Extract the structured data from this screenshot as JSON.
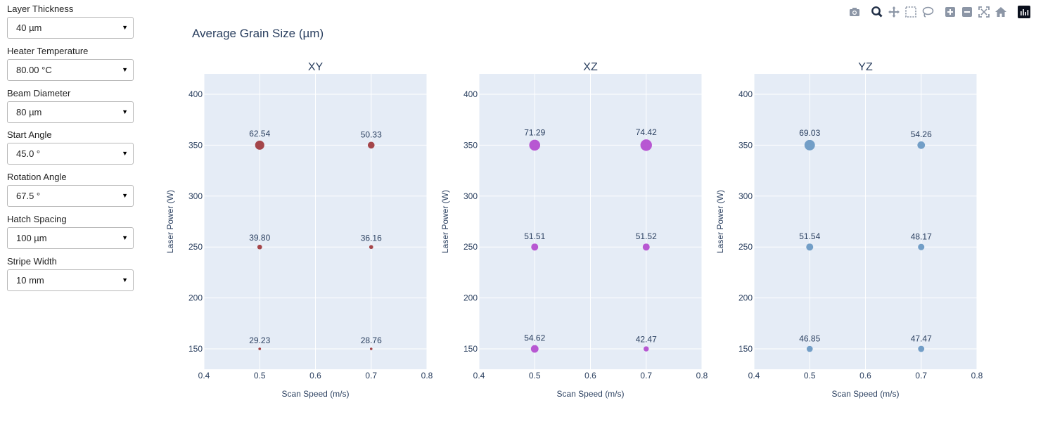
{
  "controls": [
    {
      "label": "Layer Thickness",
      "value": "40 µm"
    },
    {
      "label": "Heater Temperature",
      "value": "80.00 °C"
    },
    {
      "label": "Beam Diameter",
      "value": "80 µm"
    },
    {
      "label": "Start Angle",
      "value": "45.0 °"
    },
    {
      "label": "Rotation Angle",
      "value": "67.5 °"
    },
    {
      "label": "Hatch Spacing",
      "value": "100 µm"
    },
    {
      "label": "Stripe Width",
      "value": "10 mm"
    }
  ],
  "modebar_icons": [
    "camera-icon",
    "zoom-icon",
    "pan-icon",
    "box-select-icon",
    "lasso-select-icon",
    "zoom-in-icon",
    "zoom-out-icon",
    "autoscale-icon",
    "reset-axes-icon",
    "plotly-logo-icon"
  ],
  "figure_title": "Average Grain Size (µm)",
  "chart_data": [
    {
      "type": "scatter",
      "title": "XY",
      "color": "#a03c40",
      "xlabel": "Scan Speed (m/s)",
      "ylabel": "Laser Power (W)",
      "xlim": [
        0.4,
        0.8
      ],
      "ylim": [
        130,
        420
      ],
      "xticks": [
        0.4,
        0.5,
        0.6,
        0.7,
        0.8
      ],
      "yticks": [
        150,
        200,
        250,
        300,
        350,
        400
      ],
      "points": [
        {
          "x": 0.5,
          "y": 350,
          "value": 62.54,
          "label": "62.54"
        },
        {
          "x": 0.7,
          "y": 350,
          "value": 50.33,
          "label": "50.33"
        },
        {
          "x": 0.5,
          "y": 250,
          "value": 39.8,
          "label": "39.80"
        },
        {
          "x": 0.7,
          "y": 250,
          "value": 36.16,
          "label": "36.16"
        },
        {
          "x": 0.5,
          "y": 150,
          "value": 29.23,
          "label": "29.23"
        },
        {
          "x": 0.7,
          "y": 150,
          "value": 28.76,
          "label": "28.76"
        }
      ]
    },
    {
      "type": "scatter",
      "title": "XZ",
      "color": "#b44fd0",
      "xlabel": "Scan Speed (m/s)",
      "ylabel": "Laser Power (W)",
      "xlim": [
        0.4,
        0.8
      ],
      "ylim": [
        130,
        420
      ],
      "xticks": [
        0.4,
        0.5,
        0.6,
        0.7,
        0.8
      ],
      "yticks": [
        150,
        200,
        250,
        300,
        350,
        400
      ],
      "points": [
        {
          "x": 0.5,
          "y": 350,
          "value": 71.29,
          "label": "71.29"
        },
        {
          "x": 0.7,
          "y": 350,
          "value": 74.42,
          "label": "74.42"
        },
        {
          "x": 0.5,
          "y": 250,
          "value": 51.51,
          "label": "51.51"
        },
        {
          "x": 0.7,
          "y": 250,
          "value": 51.52,
          "label": "51.52"
        },
        {
          "x": 0.5,
          "y": 150,
          "value": 54.62,
          "label": "54.62"
        },
        {
          "x": 0.7,
          "y": 150,
          "value": 42.47,
          "label": "42.47"
        }
      ]
    },
    {
      "type": "scatter",
      "title": "YZ",
      "color": "#6b9ac4",
      "xlabel": "Scan Speed (m/s)",
      "ylabel": "Laser Power (W)",
      "xlim": [
        0.4,
        0.8
      ],
      "ylim": [
        130,
        420
      ],
      "xticks": [
        0.4,
        0.5,
        0.6,
        0.7,
        0.8
      ],
      "yticks": [
        150,
        200,
        250,
        300,
        350,
        400
      ],
      "points": [
        {
          "x": 0.5,
          "y": 350,
          "value": 69.03,
          "label": "69.03"
        },
        {
          "x": 0.7,
          "y": 350,
          "value": 54.26,
          "label": "54.26"
        },
        {
          "x": 0.5,
          "y": 250,
          "value": 51.54,
          "label": "51.54"
        },
        {
          "x": 0.7,
          "y": 250,
          "value": 48.17,
          "label": "48.17"
        },
        {
          "x": 0.5,
          "y": 150,
          "value": 46.85,
          "label": "46.85"
        },
        {
          "x": 0.7,
          "y": 150,
          "value": 47.47,
          "label": "47.47"
        }
      ]
    }
  ]
}
